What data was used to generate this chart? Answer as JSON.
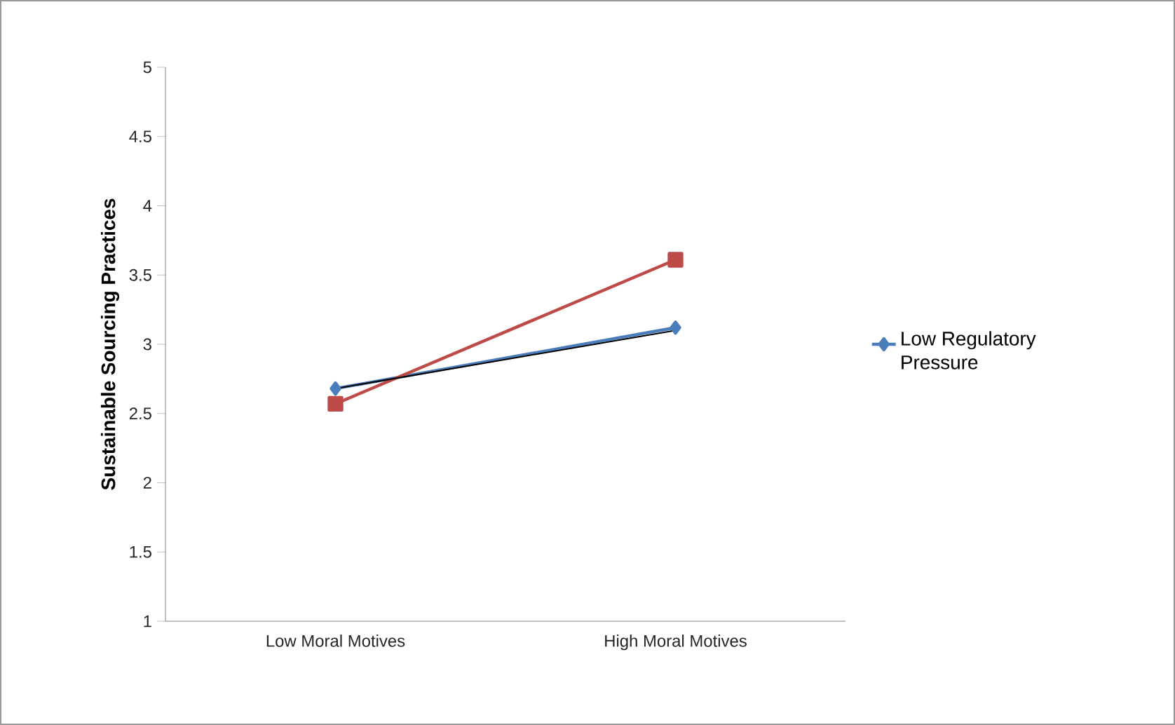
{
  "chart_data": {
    "type": "line",
    "ylabel": "Sustainable Sourcing Practices",
    "categories": [
      "Low Moral Motives",
      "High Moral Motives"
    ],
    "series": [
      {
        "name": "Low Regulatory Pressure",
        "color": "#4a7ebb",
        "values": [
          2.68,
          3.12
        ],
        "marker": "diamond"
      },
      {
        "color": "#be4b48",
        "values": [
          2.57,
          3.61
        ],
        "marker": "square"
      },
      {
        "color": "#000000",
        "values": [
          2.68,
          3.1
        ],
        "marker": "none"
      }
    ],
    "ylim": [
      1,
      5
    ],
    "yticks": [
      1,
      1.5,
      2,
      2.5,
      3,
      3.5,
      4,
      4.5,
      5
    ],
    "grid": false,
    "legend": "right"
  }
}
